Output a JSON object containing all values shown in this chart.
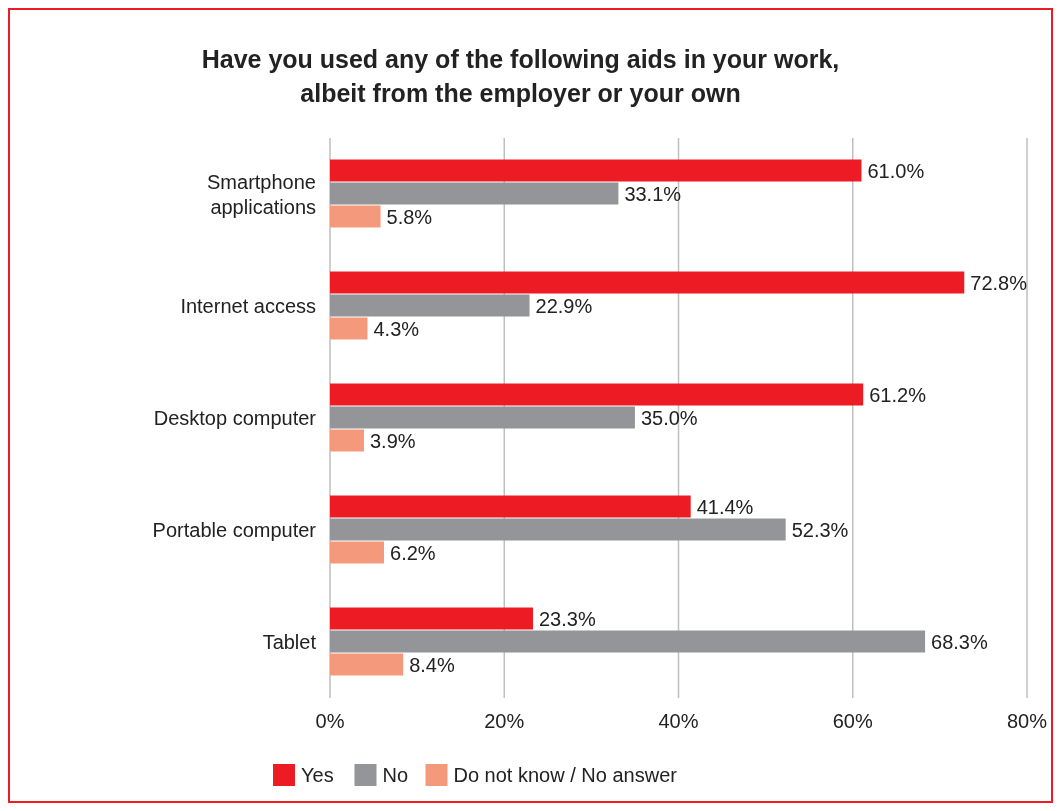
{
  "chart_data": {
    "type": "bar",
    "orientation": "horizontal",
    "title": "Have you used any of the following aids in your work, albeit from the employer or your own",
    "categories": [
      "Smartphone applications",
      "Internet access",
      "Desktop computer",
      "Portable computer",
      "Tablet"
    ],
    "series": [
      {
        "name": "Yes",
        "color": "#ed1c24",
        "values": [
          61.0,
          72.8,
          61.2,
          41.4,
          23.3
        ],
        "value_labels": [
          "61.0%",
          "72.8%",
          "61.2%",
          "41.4%",
          "23.3%"
        ]
      },
      {
        "name": "No",
        "color": "#939598",
        "values": [
          33.1,
          22.9,
          35.0,
          52.3,
          68.3
        ],
        "value_labels": [
          "33.1%",
          "22.9%",
          "35.0%",
          "52.3%",
          "68.3%"
        ]
      },
      {
        "name": "Do not know / No answer",
        "color": "#f4997b",
        "values": [
          5.8,
          4.3,
          3.9,
          6.2,
          8.4
        ],
        "value_labels": [
          "5.8%",
          "4.3%",
          "3.9%",
          "6.2%",
          "8.4%"
        ]
      }
    ],
    "xlim": [
      0,
      80
    ],
    "xticks": [
      {
        "value": 0,
        "label": "0%"
      },
      {
        "value": 20,
        "label": "20%"
      },
      {
        "value": 40,
        "label": "40%"
      },
      {
        "value": 60,
        "label": "60%"
      },
      {
        "value": 80,
        "label": "80%"
      }
    ],
    "grid": "x",
    "legend": "bottom"
  }
}
